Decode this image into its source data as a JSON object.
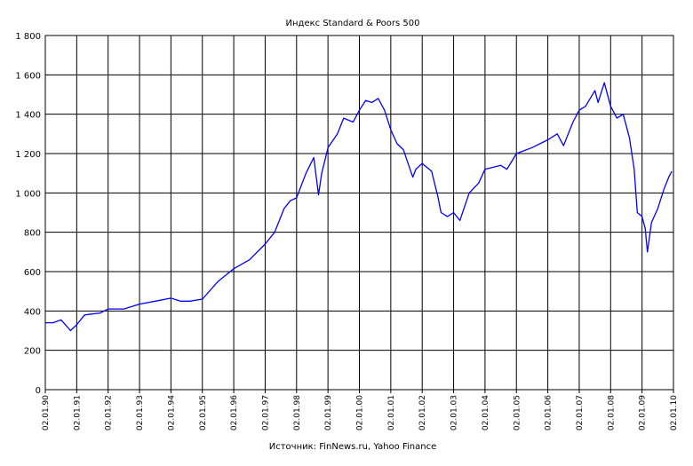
{
  "chart_data": {
    "type": "line",
    "title": "Индекс Standard & Poors 500",
    "source": "Источник: FinNews.ru, Yahoo Finance",
    "ylim": [
      0,
      1800
    ],
    "y_ticks": [
      0,
      200,
      400,
      600,
      800,
      1000,
      1200,
      1400,
      1600,
      1800
    ],
    "y_tick_labels": [
      "0",
      "200",
      "400",
      "600",
      "800",
      "1 000",
      "1 200",
      "1 400",
      "1 600",
      "1 800"
    ],
    "x_ticks": [
      "02.01.90",
      "02.01.91",
      "02.01.92",
      "02.01.93",
      "02.01.94",
      "02.01.95",
      "02.01.96",
      "02.01.97",
      "02.01.98",
      "02.01.99",
      "02.01.00",
      "02.01.01",
      "02.01.02",
      "02.01.03",
      "02.01.04",
      "02.01.05",
      "02.01.06",
      "02.01.07",
      "02.01.08",
      "02.01.09",
      "02.01.10"
    ],
    "grid": true,
    "line_color": "#0000ff",
    "series": [
      {
        "x": [
          1990.0,
          1990.25,
          1990.5,
          1990.75,
          1990.8,
          1991.0,
          1991.25,
          1991.5,
          1991.75,
          1992.0,
          1992.5,
          1993.0,
          1993.5,
          1994.0,
          1994.3,
          1994.6,
          1995.0,
          1995.5,
          1996.0,
          1996.5,
          1997.0,
          1997.3,
          1997.6,
          1997.8,
          1998.0,
          1998.3,
          1998.55,
          1998.7,
          1998.8,
          1999.0,
          1999.3,
          1999.5,
          1999.8,
          2000.0,
          2000.2,
          2000.4,
          2000.6,
          2000.8,
          2001.0,
          2001.2,
          2001.4,
          2001.7,
          2001.8,
          2002.0,
          2002.3,
          2002.5,
          2002.6,
          2002.8,
          2003.0,
          2003.2,
          2003.5,
          2003.8,
          2004.0,
          2004.5,
          2004.7,
          2005.0,
          2005.5,
          2006.0,
          2006.3,
          2006.5,
          2006.8,
          2007.0,
          2007.2,
          2007.5,
          2007.6,
          2007.8,
          2008.0,
          2008.2,
          2008.4,
          2008.6,
          2008.75,
          2008.85,
          2009.0,
          2009.1,
          2009.17,
          2009.3,
          2009.5,
          2009.7,
          2009.85,
          2009.95
        ],
        "y": [
          340,
          340,
          355,
          310,
          300,
          330,
          380,
          385,
          390,
          410,
          410,
          435,
          450,
          465,
          450,
          450,
          460,
          550,
          615,
          660,
          740,
          800,
          920,
          960,
          975,
          1100,
          1180,
          990,
          1100,
          1230,
          1300,
          1380,
          1360,
          1420,
          1470,
          1460,
          1480,
          1420,
          1320,
          1250,
          1220,
          1080,
          1120,
          1150,
          1110,
          980,
          900,
          880,
          900,
          860,
          1000,
          1050,
          1120,
          1140,
          1120,
          1200,
          1230,
          1270,
          1300,
          1240,
          1360,
          1420,
          1440,
          1520,
          1460,
          1560,
          1440,
          1380,
          1400,
          1280,
          1120,
          900,
          880,
          820,
          700,
          850,
          920,
          1020,
          1080,
          1110
        ]
      }
    ]
  }
}
